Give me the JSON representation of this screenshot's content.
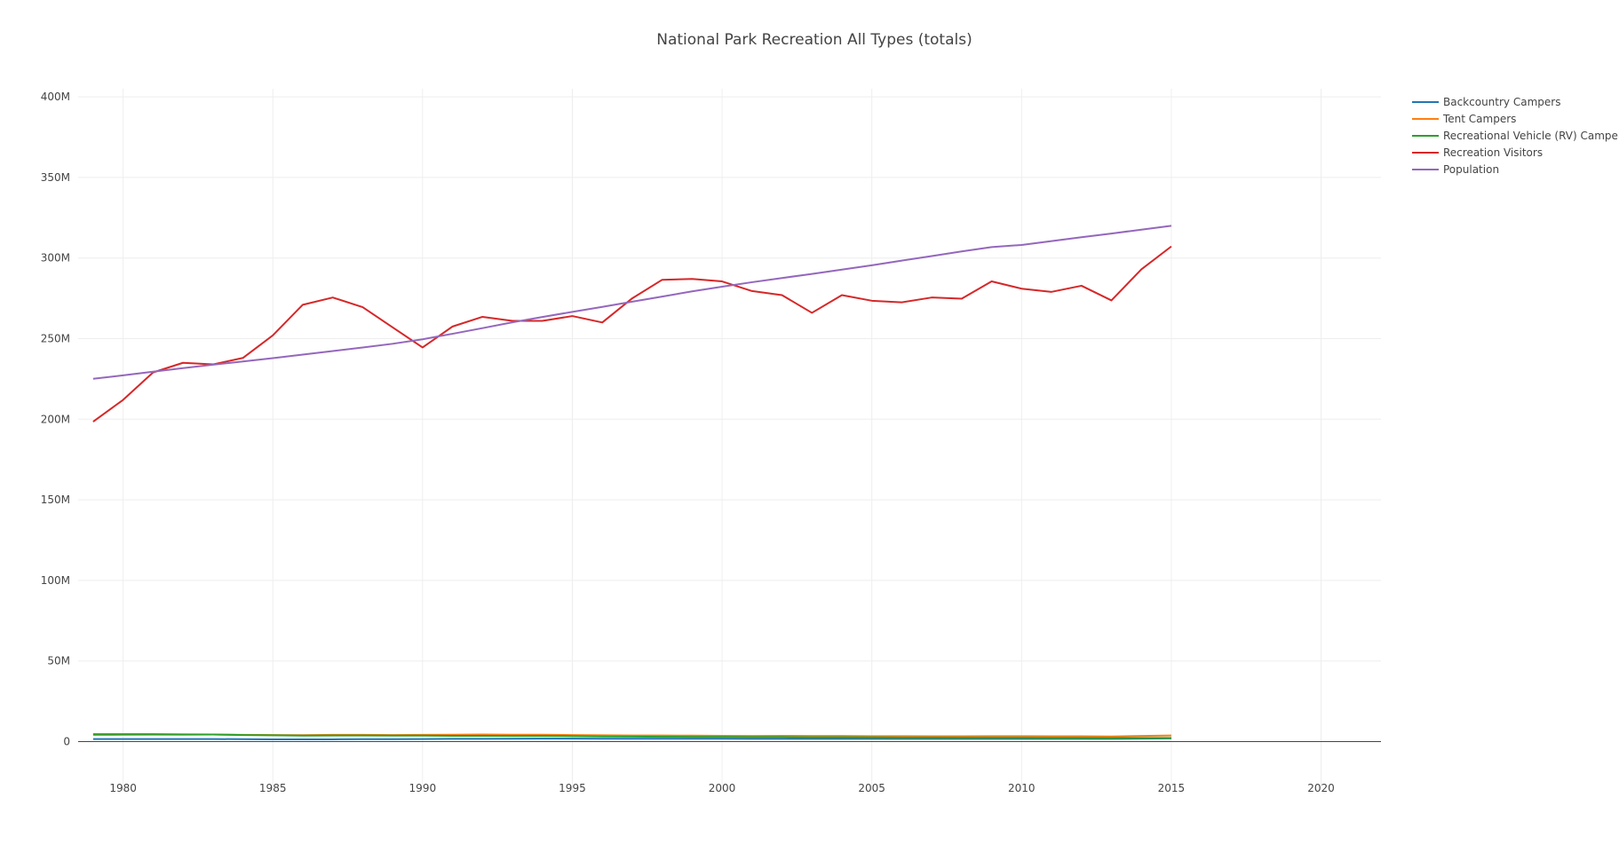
{
  "chart_data": {
    "type": "line",
    "title": "National Park Recreation All Types (totals)",
    "xlabel": "",
    "ylabel": "",
    "xlim": [
      1978.5,
      2022
    ],
    "ylim": [
      -30000000,
      405000000
    ],
    "x_ticks": [
      "1980",
      "1985",
      "1990",
      "1995",
      "2000",
      "2005",
      "2010",
      "2015",
      "2020"
    ],
    "y_ticks": [
      "0",
      "50M",
      "100M",
      "150M",
      "200M",
      "250M",
      "300M",
      "350M",
      "400M"
    ],
    "grid": true,
    "legend_position": "top-right",
    "x": [
      1979,
      1980,
      1981,
      1982,
      1983,
      1984,
      1985,
      1986,
      1987,
      1988,
      1989,
      1990,
      1991,
      1992,
      1993,
      1994,
      1995,
      1996,
      1997,
      1998,
      1999,
      2000,
      2001,
      2002,
      2003,
      2004,
      2005,
      2006,
      2007,
      2008,
      2009,
      2010,
      2011,
      2012,
      2013,
      2014,
      2015
    ],
    "series": [
      {
        "name": "Backcountry Campers",
        "color": "#1f77b4",
        "values": [
          1600000,
          1600000,
          1600000,
          1600000,
          1600000,
          1500000,
          1400000,
          1400000,
          1400000,
          1500000,
          1500000,
          1600000,
          1700000,
          1700000,
          1800000,
          1900000,
          1900000,
          1800000,
          1800000,
          1800000,
          1800000,
          1800000,
          1700000,
          1700000,
          1700000,
          1700000,
          1700000,
          1700000,
          1700000,
          1700000,
          1700000,
          1700000,
          1700000,
          1700000,
          1700000,
          1900000,
          2000000
        ]
      },
      {
        "name": "Tent Campers",
        "color": "#ff7f0e",
        "values": [
          4100000,
          4200000,
          4300000,
          4300000,
          4400000,
          4200000,
          4100000,
          4000000,
          4200000,
          4200000,
          4100000,
          4200000,
          4300000,
          4400000,
          4300000,
          4300000,
          4100000,
          3900000,
          3800000,
          3800000,
          3700000,
          3600000,
          3500000,
          3600000,
          3500000,
          3500000,
          3400000,
          3400000,
          3300000,
          3300000,
          3400000,
          3400000,
          3300000,
          3300000,
          3200000,
          3500000,
          3800000
        ]
      },
      {
        "name": "Recreational Vehicle (RV) Campers",
        "color": "#2ca02c",
        "values": [
          4600000,
          4600000,
          4600000,
          4500000,
          4400000,
          4100000,
          3900000,
          3700000,
          3800000,
          3800000,
          3700000,
          3700000,
          3600000,
          3600000,
          3500000,
          3500000,
          3400000,
          3200000,
          3100000,
          3000000,
          2900000,
          2900000,
          2800000,
          2800000,
          2700000,
          2700000,
          2600000,
          2500000,
          2500000,
          2400000,
          2400000,
          2400000,
          2300000,
          2300000,
          2200000,
          2300000,
          2300000
        ]
      },
      {
        "name": "Recreation Visitors",
        "color": "#d62728",
        "values": [
          198500000,
          212000000,
          229000000,
          235000000,
          234000000,
          238000000,
          252000000,
          271000000,
          275500000,
          269500000,
          257000000,
          244500000,
          257500000,
          263500000,
          261000000,
          261000000,
          264000000,
          260000000,
          275000000,
          286500000,
          287000000,
          285500000,
          279500000,
          277000000,
          266000000,
          277000000,
          273500000,
          272500000,
          275500000,
          274800000,
          285500000,
          281000000,
          279000000,
          282800000,
          273700000,
          293000000,
          307200000
        ]
      },
      {
        "name": "Population",
        "color": "#9467bd",
        "values": [
          225100000,
          227200000,
          229500000,
          231700000,
          233800000,
          235800000,
          237900000,
          240100000,
          242300000,
          244500000,
          246800000,
          249600000,
          253000000,
          256500000,
          260100000,
          263400000,
          266600000,
          269700000,
          272900000,
          276100000,
          279300000,
          282200000,
          285000000,
          287600000,
          290100000,
          292800000,
          295500000,
          298400000,
          301200000,
          304100000,
          306800000,
          308100000,
          310500000,
          312900000,
          315200000,
          317600000,
          320000000
        ]
      }
    ]
  }
}
